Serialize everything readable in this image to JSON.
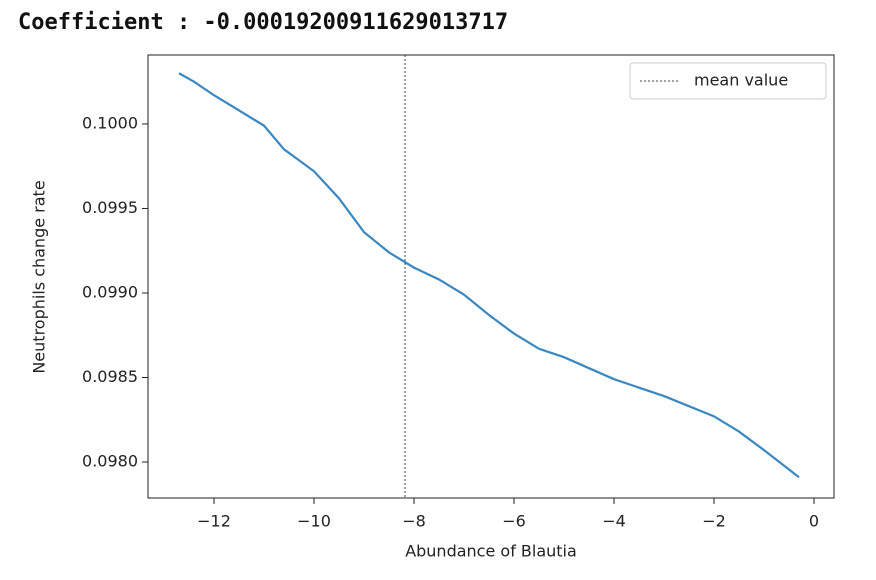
{
  "header": "Coefficient : -0.00019200911629013717",
  "chart_data": {
    "type": "line",
    "x_label": "Abundance of Blautia",
    "y_label": "Neutrophils change rate",
    "x": [
      -12.7,
      -12.4,
      -12,
      -11,
      -10.6,
      -10,
      -9.5,
      -9,
      -8.5,
      -8,
      -7.5,
      -7,
      -6.5,
      -6,
      -5.5,
      -5,
      -4,
      -3,
      -2,
      -1.5,
      -1,
      -0.3
    ],
    "values": [
      0.1003,
      0.10025,
      0.10017,
      0.09999,
      0.09985,
      0.09972,
      0.09956,
      0.09936,
      0.09924,
      0.09915,
      0.09908,
      0.09899,
      0.09887,
      0.09876,
      0.09867,
      0.09862,
      0.09849,
      0.09839,
      0.09827,
      0.09818,
      0.09807,
      0.09791
    ],
    "color": "#3a87c1",
    "vlines": [
      {
        "name": "mean value",
        "x": -8.18,
        "color": "#444444",
        "style": "dotted"
      }
    ],
    "legend": "upper right",
    "xlim": [
      -13.32,
      0.4
    ],
    "ylim": [
      0.097787,
      0.100408
    ],
    "xticks": [
      {
        "value": -12,
        "label": "−12"
      },
      {
        "value": -10,
        "label": "−10"
      },
      {
        "value": -8,
        "label": "−8"
      },
      {
        "value": -6,
        "label": "−6"
      },
      {
        "value": -4,
        "label": "−4"
      },
      {
        "value": -2,
        "label": "−2"
      },
      0
    ],
    "yticks": [
      {
        "value": 0.098,
        "label": "0.0980"
      },
      0.0985,
      {
        "value": 0.099,
        "label": "0.0990"
      },
      0.0995,
      {
        "value": 0.1,
        "label": "0.1000"
      }
    ],
    "grid": false
  }
}
